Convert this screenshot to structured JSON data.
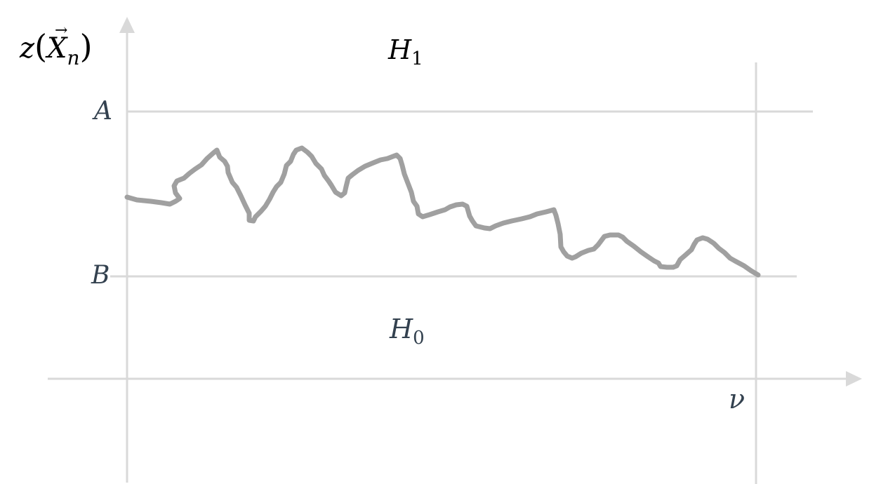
{
  "labels": {
    "y_axis": {
      "base": "z",
      "open_paren": "(",
      "arrow": "→",
      "var": "X",
      "sub": "n",
      "close_paren": ")"
    },
    "h1": {
      "base": "H",
      "sub": "1"
    },
    "h0": {
      "base": "H",
      "sub": "0"
    },
    "upper_threshold": "A",
    "lower_threshold": "B",
    "stopping_time": "ν"
  },
  "colors": {
    "axis": "#d9d9d9",
    "threshold": "#d9d9d9",
    "path": "#a0a0a0",
    "label_dark": "#000000",
    "label_slate": "#33414f"
  }
}
